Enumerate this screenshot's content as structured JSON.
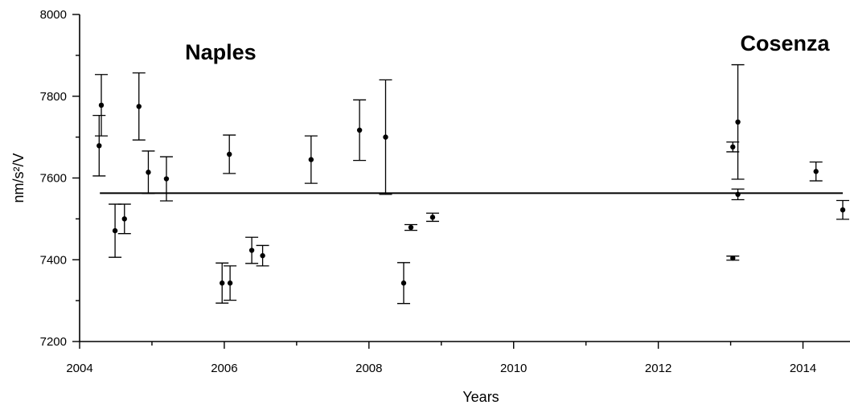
{
  "chart_data": {
    "type": "scatter",
    "title": "",
    "xlabel": "Years",
    "ylabel": "nm/s²/V",
    "xlim": [
      2004,
      2014.65
    ],
    "ylim": [
      7200,
      8000
    ],
    "x_ticks": [
      2004,
      2006,
      2008,
      2010,
      2012,
      2014
    ],
    "x_tick_labels": [
      "2004",
      "2006",
      "2008",
      "2010",
      "2012",
      "2014"
    ],
    "y_ticks": [
      7200,
      7400,
      7600,
      7800,
      8000
    ],
    "y_tick_labels": [
      "7200",
      "7400",
      "7600",
      "7800",
      "8000"
    ],
    "grid": false,
    "reference_line": {
      "y": 7563,
      "x_start": 2004.28,
      "x_end": 2014.55
    },
    "annotations": [
      {
        "text": "Naples",
        "x": 2005.95,
        "y": 7890
      },
      {
        "text": "Cosenza",
        "x": 2013.75,
        "y": 7912
      }
    ],
    "series": [
      {
        "points": [
          {
            "x": 2004.27,
            "y": 7679,
            "err": 74
          },
          {
            "x": 2004.3,
            "y": 7778,
            "err": 75
          },
          {
            "x": 2004.49,
            "y": 7471,
            "err": 65
          },
          {
            "x": 2004.62,
            "y": 7500,
            "err": 36
          },
          {
            "x": 2004.82,
            "y": 7775,
            "err": 82
          },
          {
            "x": 2004.95,
            "y": 7614,
            "err": 52
          },
          {
            "x": 2005.2,
            "y": 7598,
            "err": 54
          },
          {
            "x": 2005.97,
            "y": 7343,
            "err": 49
          },
          {
            "x": 2006.08,
            "y": 7343,
            "err": 42
          },
          {
            "x": 2006.07,
            "y": 7658,
            "err": 47
          },
          {
            "x": 2006.38,
            "y": 7423,
            "err": 32
          },
          {
            "x": 2006.53,
            "y": 7410,
            "err": 25
          },
          {
            "x": 2007.2,
            "y": 7645,
            "err": 58
          },
          {
            "x": 2007.87,
            "y": 7717,
            "err": 74
          },
          {
            "x": 2008.23,
            "y": 7700,
            "err": 140
          },
          {
            "x": 2008.48,
            "y": 7343,
            "err": 50
          },
          {
            "x": 2008.58,
            "y": 7479,
            "err": 7
          },
          {
            "x": 2008.88,
            "y": 7504,
            "err": 10
          },
          {
            "x": 2013.03,
            "y": 7676,
            "err": 12
          },
          {
            "x": 2013.03,
            "y": 7404,
            "err": 5
          },
          {
            "x": 2013.1,
            "y": 7737,
            "err": 140
          },
          {
            "x": 2013.1,
            "y": 7560,
            "err": 13
          },
          {
            "x": 2014.18,
            "y": 7616,
            "err": 23
          },
          {
            "x": 2014.55,
            "y": 7522,
            "err": 23
          }
        ]
      }
    ]
  }
}
